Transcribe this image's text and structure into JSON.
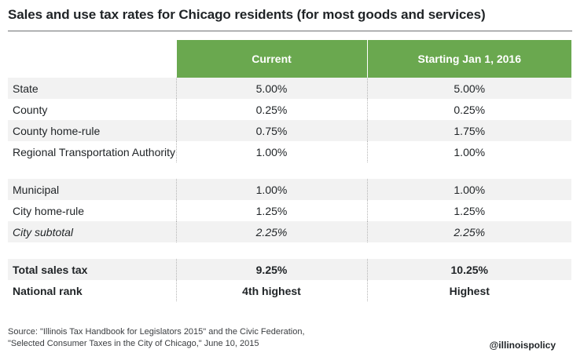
{
  "title": "Sales and use tax rates for Chicago residents (for most goods and services)",
  "columns": {
    "current": "Current",
    "starting": "Starting Jan 1, 2016"
  },
  "section1": [
    {
      "label": "State",
      "current": "5.00%",
      "starting": "5.00%"
    },
    {
      "label": "County",
      "current": "0.25%",
      "starting": "0.25%"
    },
    {
      "label": "County home-rule",
      "current": "0.75%",
      "starting": "1.75%"
    },
    {
      "label": "Regional Transportation Authority",
      "current": "1.00%",
      "starting": "1.00%"
    }
  ],
  "section2": [
    {
      "label": "Municipal",
      "current": "1.00%",
      "starting": "1.00%"
    },
    {
      "label": "City home-rule",
      "current": "1.25%",
      "starting": "1.25%"
    },
    {
      "label": "City subtotal",
      "current": "2.25%",
      "starting": "2.25%"
    }
  ],
  "section3": [
    {
      "label": "Total sales tax",
      "current": "9.25%",
      "starting": "10.25%"
    },
    {
      "label": "National rank",
      "current": "4th highest",
      "starting": "Highest"
    }
  ],
  "source": {
    "line1": "Source: \"Illinois Tax Handbook for Legislators 2015\" and the Civic Federation,",
    "line2": "\"Selected Consumer Taxes in the City of Chicago,\" June 10, 2015"
  },
  "brand": "@illinoispolicy",
  "colors": {
    "header_green": "#6aa84f",
    "row_gray": "#f2f2f2"
  }
}
